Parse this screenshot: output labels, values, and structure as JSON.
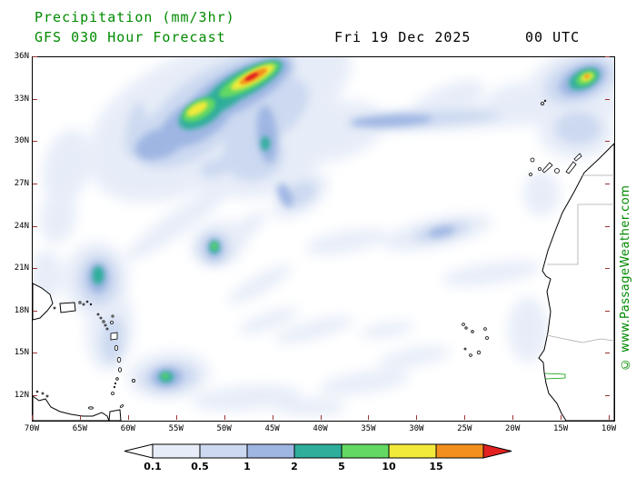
{
  "header": {
    "title": "Precipitation (mm/3hr)",
    "subtitle": "GFS 030 Hour Forecast",
    "date": "Fri 19 Dec 2025",
    "time": "00 UTC",
    "title_color": "#008a00",
    "date_color": "#000000"
  },
  "watermark": {
    "text": "© www.PassageWeather.com",
    "color": "#008a00"
  },
  "axes": {
    "lat": [
      "36N",
      "33N",
      "30N",
      "27N",
      "24N",
      "21N",
      "18N",
      "15N",
      "12N"
    ],
    "lon": [
      "70W",
      "65W",
      "60W",
      "55W",
      "50W",
      "45W",
      "40W",
      "35W",
      "30W",
      "25W",
      "20W",
      "15W",
      "10W"
    ],
    "tick_color": "#993333"
  },
  "legend": {
    "labels": [
      "0.1",
      "0.5",
      "1",
      "2",
      "5",
      "10",
      "15"
    ],
    "chip_colors": [
      "#e7edf8",
      "#ccd9f0",
      "#9fb6e3",
      "#2fae9b",
      "#63d963",
      "#f2ea3a",
      "#f2901e"
    ],
    "left_arrow_color": "#ffffff",
    "right_arrow_color": "#e32121"
  },
  "map": {
    "palette": {
      "l1": "#e7edf8",
      "l2": "#ccd9f0",
      "l3": "#9fb6e3",
      "l4": "#2fae9b",
      "l5": "#63d963",
      "l6": "#f2ea3a",
      "l7": "#f2901e",
      "l8": "#e32121"
    },
    "blobs": [
      [
        "l1",
        180,
        50,
        125,
        55,
        -25
      ],
      [
        "l1",
        265,
        42,
        95,
        48,
        -30
      ],
      [
        "l1",
        150,
        100,
        90,
        55,
        -20
      ],
      [
        "l1",
        250,
        112,
        70,
        42,
        -12
      ],
      [
        "l1",
        330,
        82,
        60,
        32,
        -15
      ],
      [
        "l1",
        480,
        66,
        165,
        13,
        -3
      ],
      [
        "l1",
        600,
        58,
        60,
        12,
        -5
      ],
      [
        "l1",
        598,
        28,
        58,
        36,
        -20
      ],
      [
        "l1",
        598,
        82,
        42,
        30,
        0
      ],
      [
        "l1",
        113,
        85,
        18,
        48,
        10
      ],
      [
        "l1",
        38,
        120,
        26,
        42,
        15
      ],
      [
        "l1",
        28,
        175,
        20,
        30,
        10
      ],
      [
        "l1",
        205,
        205,
        32,
        24,
        -20
      ],
      [
        "l1",
        70,
        245,
        36,
        42,
        0
      ],
      [
        "l1",
        85,
        300,
        26,
        46,
        5
      ],
      [
        "l1",
        150,
        350,
        46,
        26,
        -5
      ],
      [
        "l1",
        295,
        153,
        36,
        18,
        -35
      ],
      [
        "l1",
        235,
        188,
        28,
        10,
        -40
      ],
      [
        "l1",
        345,
        203,
        46,
        12,
        -10
      ],
      [
        "l1",
        445,
        193,
        62,
        16,
        -12
      ],
      [
        "l1",
        505,
        238,
        56,
        12,
        -8
      ],
      [
        "l1",
        525,
        45,
        30,
        15,
        -20
      ],
      [
        "l1",
        455,
        50,
        46,
        18,
        -25
      ],
      [
        "l1",
        235,
        375,
        60,
        14,
        -5
      ],
      [
        "l1",
        305,
        385,
        40,
        10,
        0
      ],
      [
        "l1",
        365,
        358,
        50,
        12,
        -8
      ],
      [
        "l1",
        545,
        300,
        22,
        36,
        0
      ],
      [
        "l1",
        200,
        125,
        32,
        22,
        -15
      ],
      [
        "l1",
        15,
        240,
        18,
        28,
        0
      ],
      [
        "l1",
        160,
        182,
        70,
        13,
        -35
      ],
      [
        "l1",
        250,
        250,
        40,
        10,
        -30
      ],
      [
        "l1",
        310,
        300,
        45,
        10,
        -15
      ],
      [
        "l1",
        420,
        330,
        40,
        10,
        -10
      ],
      [
        "l1",
        560,
        150,
        20,
        25,
        0
      ],
      [
        "l1",
        260,
        290,
        35,
        9,
        -20
      ],
      [
        "l1",
        390,
        300,
        30,
        8,
        -10
      ],
      [
        "l2",
        210,
        45,
        88,
        36,
        -28
      ],
      [
        "l2",
        165,
        82,
        60,
        34,
        -25
      ],
      [
        "l2",
        256,
        62,
        55,
        30,
        -35
      ],
      [
        "l2",
        242,
        108,
        34,
        28,
        -5
      ],
      [
        "l2",
        430,
        68,
        85,
        8,
        -3
      ],
      [
        "l2",
        602,
        26,
        40,
        23,
        -20
      ],
      [
        "l2",
        600,
        78,
        25,
        18,
        0
      ],
      [
        "l2",
        72,
        245,
        22,
        28,
        0
      ],
      [
        "l2",
        150,
        352,
        30,
        16,
        -5
      ],
      [
        "l2",
        200,
        210,
        18,
        18,
        0
      ],
      [
        "l2",
        450,
        192,
        32,
        8,
        -12
      ],
      [
        "l2",
        295,
        150,
        18,
        12,
        -30
      ],
      [
        "l2",
        200,
        122,
        16,
        10,
        -15
      ],
      [
        "l2",
        88,
        310,
        12,
        25,
        5
      ],
      [
        "l2",
        113,
        80,
        10,
        30,
        10
      ],
      [
        "l3",
        225,
        36,
        66,
        22,
        -28
      ],
      [
        "l3",
        180,
        70,
        45,
        22,
        -30
      ],
      [
        "l3",
        258,
        85,
        11,
        32,
        -5
      ],
      [
        "l3",
        140,
        95,
        28,
        16,
        -20
      ],
      [
        "l3",
        395,
        70,
        45,
        6,
        -3
      ],
      [
        "l3",
        605,
        25,
        27,
        15,
        -25
      ],
      [
        "l3",
        72,
        243,
        12,
        17,
        0
      ],
      [
        "l3",
        148,
        352,
        17,
        11,
        -5
      ],
      [
        "l3",
        200,
        210,
        9,
        11,
        0
      ],
      [
        "l3",
        450,
        192,
        15,
        5,
        -12
      ],
      [
        "l3",
        278,
        152,
        7,
        14,
        -25
      ],
      [
        "l4",
        232,
        29,
        48,
        14,
        -28
      ],
      [
        "l4",
        186,
        61,
        28,
        14,
        -30
      ],
      [
        "l4",
        210,
        46,
        34,
        11,
        -30
      ],
      [
        "l4",
        607,
        24,
        18,
        10,
        -25
      ],
      [
        "l4",
        72,
        240,
        6.5,
        10,
        0
      ],
      [
        "l4",
        147,
        352,
        8,
        6,
        0
      ],
      [
        "l4",
        200,
        209,
        5.5,
        7,
        0
      ],
      [
        "l4",
        256,
        95,
        5,
        8,
        0
      ],
      [
        "l5",
        238,
        25,
        37,
        10,
        -28
      ],
      [
        "l5",
        183,
        58,
        20,
        10,
        -30
      ],
      [
        "l5",
        609,
        23,
        12,
        7,
        -25
      ],
      [
        "l5",
        146,
        351,
        3.5,
        3,
        0
      ],
      [
        "l5",
        200,
        208,
        3,
        4,
        0
      ],
      [
        "l6",
        242,
        22,
        27,
        7,
        -28
      ],
      [
        "l6",
        181,
        57,
        13,
        5.5,
        -30
      ],
      [
        "l6",
        610,
        22,
        7,
        4,
        -25
      ],
      [
        "l7",
        243,
        21,
        17,
        4.5,
        -28
      ],
      [
        "l7",
        610,
        21,
        3,
        2,
        -25
      ],
      [
        "l8",
        241,
        21.5,
        8,
        2.5,
        -28
      ]
    ]
  }
}
